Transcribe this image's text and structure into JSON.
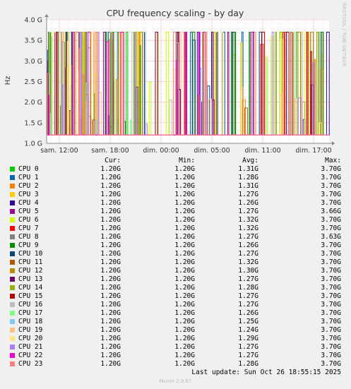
{
  "chart_data": {
    "type": "line",
    "title": "CPU frequency scaling - by day",
    "ylabel": "Hz",
    "side_label": "RRDTOOL / TOBI OETIKER",
    "y_ticks": [
      "1.0 G",
      "1.5 G",
      "2.0 G",
      "2.5 G",
      "3.0 G",
      "3.5 G",
      "4.0 G"
    ],
    "ylim": [
      1.0,
      4.0
    ],
    "x_ticks": [
      "sam. 12:00",
      "sam. 18:00",
      "dim. 00:00",
      "dim. 05:00",
      "dim. 11:00",
      "dim. 17:00"
    ],
    "grid": true,
    "baseline": 1.2,
    "peak": 3.7,
    "legend_headers": {
      "cur": "Cur:",
      "min": "Min:",
      "avg": "Avg:",
      "max": "Max:"
    },
    "series": [
      {
        "name": "CPU 0",
        "color": "#00cc00",
        "cur": "1.20G",
        "min": "1.20G",
        "avg": "1.31G",
        "max": "3.70G"
      },
      {
        "name": "CPU 1",
        "color": "#0066b3",
        "cur": "1.20G",
        "min": "1.20G",
        "avg": "1.28G",
        "max": "3.70G"
      },
      {
        "name": "CPU 2",
        "color": "#ff8000",
        "cur": "1.20G",
        "min": "1.20G",
        "avg": "1.31G",
        "max": "3.70G"
      },
      {
        "name": "CPU 3",
        "color": "#ffcc00",
        "cur": "1.20G",
        "min": "1.20G",
        "avg": "1.27G",
        "max": "3.70G"
      },
      {
        "name": "CPU 4",
        "color": "#330099",
        "cur": "1.20G",
        "min": "1.20G",
        "avg": "1.26G",
        "max": "3.70G"
      },
      {
        "name": "CPU 5",
        "color": "#990099",
        "cur": "1.20G",
        "min": "1.20G",
        "avg": "1.27G",
        "max": "3.66G"
      },
      {
        "name": "CPU 6",
        "color": "#ccff00",
        "cur": "1.20G",
        "min": "1.20G",
        "avg": "1.32G",
        "max": "3.70G"
      },
      {
        "name": "CPU 7",
        "color": "#ff0000",
        "cur": "1.20G",
        "min": "1.20G",
        "avg": "1.32G",
        "max": "3.70G"
      },
      {
        "name": "CPU 8",
        "color": "#808080",
        "cur": "1.20G",
        "min": "1.20G",
        "avg": "1.27G",
        "max": "3.63G"
      },
      {
        "name": "CPU 9",
        "color": "#008f00",
        "cur": "1.20G",
        "min": "1.20G",
        "avg": "1.26G",
        "max": "3.70G"
      },
      {
        "name": "CPU 10",
        "color": "#00487d",
        "cur": "1.20G",
        "min": "1.20G",
        "avg": "1.27G",
        "max": "3.70G"
      },
      {
        "name": "CPU 11",
        "color": "#b35a00",
        "cur": "1.20G",
        "min": "1.20G",
        "avg": "1.32G",
        "max": "3.70G"
      },
      {
        "name": "CPU 12",
        "color": "#b38f00",
        "cur": "1.20G",
        "min": "1.20G",
        "avg": "1.30G",
        "max": "3.70G"
      },
      {
        "name": "CPU 13",
        "color": "#6b006b",
        "cur": "1.20G",
        "min": "1.20G",
        "avg": "1.27G",
        "max": "3.70G"
      },
      {
        "name": "CPU 14",
        "color": "#8fb300",
        "cur": "1.20G",
        "min": "1.20G",
        "avg": "1.28G",
        "max": "3.70G"
      },
      {
        "name": "CPU 15",
        "color": "#b30000",
        "cur": "1.20G",
        "min": "1.20G",
        "avg": "1.27G",
        "max": "3.70G"
      },
      {
        "name": "CPU 16",
        "color": "#bebebe",
        "cur": "1.20G",
        "min": "1.20G",
        "avg": "1.27G",
        "max": "3.70G"
      },
      {
        "name": "CPU 17",
        "color": "#80ff80",
        "cur": "1.20G",
        "min": "1.20G",
        "avg": "1.26G",
        "max": "3.70G"
      },
      {
        "name": "CPU 18",
        "color": "#80c9ff",
        "cur": "1.20G",
        "min": "1.20G",
        "avg": "1.25G",
        "max": "3.70G"
      },
      {
        "name": "CPU 19",
        "color": "#ffc080",
        "cur": "1.20G",
        "min": "1.20G",
        "avg": "1.24G",
        "max": "3.70G"
      },
      {
        "name": "CPU 20",
        "color": "#ffe680",
        "cur": "1.20G",
        "min": "1.20G",
        "avg": "1.29G",
        "max": "3.70G"
      },
      {
        "name": "CPU 21",
        "color": "#aa80ff",
        "cur": "1.20G",
        "min": "1.20G",
        "avg": "1.27G",
        "max": "3.70G"
      },
      {
        "name": "CPU 22",
        "color": "#ee00cc",
        "cur": "1.20G",
        "min": "1.20G",
        "avg": "1.27G",
        "max": "3.70G"
      },
      {
        "name": "CPU 23",
        "color": "#ff8080",
        "cur": "1.20G",
        "min": "1.20G",
        "avg": "1.28G",
        "max": "3.70G"
      }
    ],
    "last_update": "Last update: Sun Oct 26 18:55:15 2025",
    "footer": "Munin 2.0.67"
  }
}
